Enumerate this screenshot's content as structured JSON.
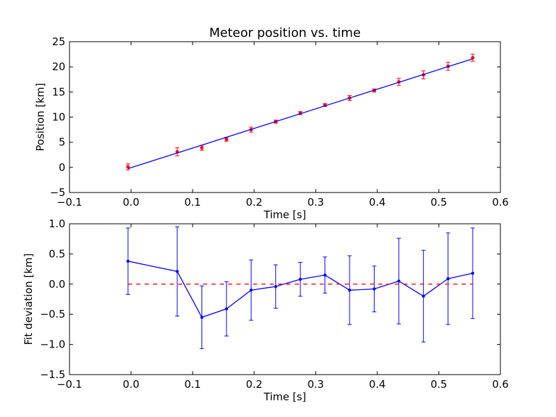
{
  "colors": {
    "fit_line": "#0000ff",
    "data_points": "#ff0000",
    "deviation": "#0000ff",
    "zero_line": "#ff0000",
    "axes": "#000000"
  },
  "chart_data": [
    {
      "type": "scatter",
      "title": "Meteor position vs. time",
      "xlabel": "Time [s]",
      "ylabel": "Position [km]",
      "xlim": [
        -0.1,
        0.6
      ],
      "ylim": [
        -5,
        25
      ],
      "x_ticks": [
        -0.1,
        0.0,
        0.1,
        0.2,
        0.3,
        0.4,
        0.5,
        0.6
      ],
      "x_tick_labels": [
        "−0.1",
        "0.0",
        "0.1",
        "0.2",
        "0.3",
        "0.4",
        "0.5",
        "0.6"
      ],
      "y_ticks": [
        -5,
        0,
        5,
        10,
        15,
        20,
        25
      ],
      "y_tick_labels": [
        "−5",
        "0",
        "5",
        "10",
        "15",
        "20",
        "25"
      ],
      "grid": false,
      "series": [
        {
          "kind": "errorbar-points",
          "x": [
            -0.005,
            0.075,
            0.115,
            0.155,
            0.195,
            0.235,
            0.275,
            0.315,
            0.355,
            0.395,
            0.435,
            0.475,
            0.515,
            0.555
          ],
          "y": [
            0.1,
            3.1,
            3.9,
            5.6,
            7.5,
            9.1,
            10.8,
            12.4,
            13.8,
            15.3,
            17.0,
            18.4,
            20.1,
            21.8
          ],
          "yerr": [
            0.6,
            0.8,
            0.5,
            0.4,
            0.5,
            0.3,
            0.3,
            0.3,
            0.5,
            0.3,
            0.7,
            0.8,
            0.8,
            0.7
          ]
        },
        {
          "kind": "fit-line",
          "x": [
            -0.005,
            0.555
          ],
          "y": [
            -0.25,
            21.6
          ]
        }
      ]
    },
    {
      "type": "line",
      "title": "",
      "xlabel": "Time [s]",
      "ylabel": "Fit deviation [km]",
      "xlim": [
        -0.1,
        0.6
      ],
      "ylim": [
        -1.5,
        1.0
      ],
      "x_ticks": [
        -0.1,
        0.0,
        0.1,
        0.2,
        0.3,
        0.4,
        0.5,
        0.6
      ],
      "x_tick_labels": [
        "−0.1",
        "0.0",
        "0.1",
        "0.2",
        "0.3",
        "0.4",
        "0.5",
        "0.6"
      ],
      "y_ticks": [
        -1.5,
        -1.0,
        -0.5,
        0.0,
        0.5,
        1.0
      ],
      "y_tick_labels": [
        "−1.5",
        "−1.0",
        "−0.5",
        "0.0",
        "0.5",
        "1.0"
      ],
      "grid": false,
      "series": [
        {
          "kind": "errorbar-line",
          "x": [
            -0.005,
            0.075,
            0.115,
            0.155,
            0.195,
            0.235,
            0.275,
            0.315,
            0.355,
            0.395,
            0.435,
            0.475,
            0.515,
            0.555
          ],
          "y": [
            0.38,
            0.21,
            -0.55,
            -0.41,
            -0.1,
            -0.04,
            0.08,
            0.15,
            -0.1,
            -0.08,
            0.05,
            -0.2,
            0.09,
            0.18
          ],
          "yerr": [
            0.55,
            0.74,
            0.52,
            0.45,
            0.5,
            0.36,
            0.28,
            0.3,
            0.57,
            0.38,
            0.71,
            0.76,
            0.76,
            0.75
          ]
        },
        {
          "kind": "zero-dashed",
          "x": [
            -0.005,
            0.555
          ],
          "y": [
            0.0,
            0.0
          ]
        }
      ]
    }
  ]
}
